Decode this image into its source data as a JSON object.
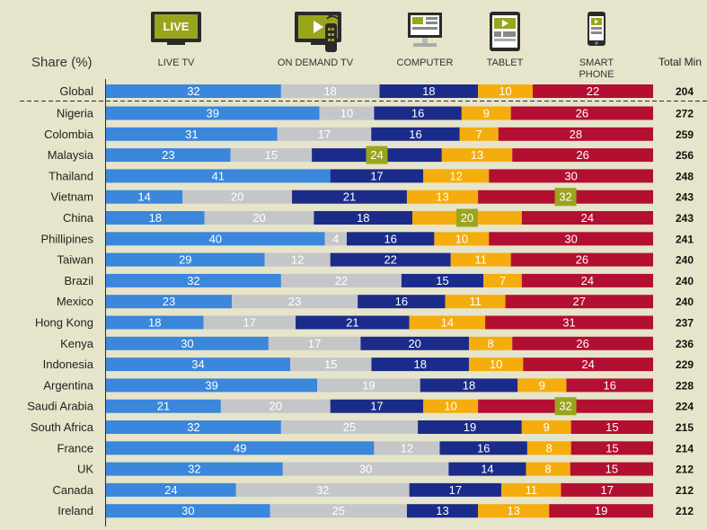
{
  "header": {
    "share_label": "Share (%)",
    "total_label": "Total Min",
    "devices": [
      {
        "label_lines": [
          "LIVE TV"
        ],
        "icon": "live-tv-icon",
        "icon_text": "LIVE"
      },
      {
        "label_lines": [
          "ON DEMAND TV"
        ],
        "icon": "on-demand-tv-icon"
      },
      {
        "label_lines": [
          "COMPUTER"
        ],
        "icon": "computer-icon"
      },
      {
        "label_lines": [
          "TABLET"
        ],
        "icon": "tablet-icon"
      },
      {
        "label_lines": [
          "SMART",
          "PHONE"
        ],
        "icon": "smartphone-icon"
      }
    ]
  },
  "colors": {
    "live_tv": "#3a87dc",
    "on_demand_tv": "#c5c6c8",
    "computer": "#1b2b8a",
    "tablet": "#f5ad0e",
    "smartphone": "#b30f33",
    "highlight_box": "#9aa51e"
  },
  "chart_data": {
    "type": "bar",
    "orientation": "horizontal",
    "stacked": true,
    "unit": "Share (%)",
    "series_names": [
      "LIVE TV",
      "ON DEMAND TV",
      "COMPUTER",
      "TABLET",
      "SMART PHONE"
    ],
    "categories": [
      "Global",
      "Nigeria",
      "Colombia",
      "Malaysia",
      "Thailand",
      "Vietnam",
      "China",
      "Phillipines",
      "Taiwan",
      "Brazil",
      "Mexico",
      "Hong Kong",
      "Kenya",
      "Indonesia",
      "Argentina",
      "Saudi Arabia",
      "South Africa",
      "France",
      "UK",
      "Canada",
      "Ireland"
    ],
    "rows": [
      {
        "country": "Global",
        "values": [
          32,
          18,
          18,
          10,
          22
        ],
        "total": 204,
        "highlight": -1
      },
      {
        "country": "Nigeria",
        "values": [
          39,
          10,
          16,
          9,
          26
        ],
        "total": 272,
        "highlight": -1
      },
      {
        "country": "Colombia",
        "values": [
          31,
          17,
          16,
          7,
          28
        ],
        "total": 259,
        "highlight": -1
      },
      {
        "country": "Malaysia",
        "values": [
          23,
          15,
          24,
          13,
          26
        ],
        "total": 256,
        "highlight": 2
      },
      {
        "country": "Thailand",
        "values": [
          41,
          0,
          17,
          12,
          30
        ],
        "total": 248,
        "highlight": -1
      },
      {
        "country": "Vietnam",
        "values": [
          14,
          20,
          21,
          13,
          32
        ],
        "total": 243,
        "highlight": 4
      },
      {
        "country": "China",
        "values": [
          18,
          20,
          18,
          20,
          24
        ],
        "total": 243,
        "highlight": 3
      },
      {
        "country": "Phillipines",
        "values": [
          40,
          4,
          16,
          10,
          30
        ],
        "total": 241,
        "highlight": -1
      },
      {
        "country": "Taiwan",
        "values": [
          29,
          12,
          22,
          11,
          26
        ],
        "total": 240,
        "highlight": -1
      },
      {
        "country": "Brazil",
        "values": [
          32,
          22,
          15,
          7,
          24
        ],
        "total": 240,
        "highlight": -1
      },
      {
        "country": "Mexico",
        "values": [
          23,
          23,
          16,
          11,
          27
        ],
        "total": 240,
        "highlight": -1
      },
      {
        "country": "Hong Kong",
        "values": [
          18,
          17,
          21,
          14,
          31
        ],
        "total": 237,
        "highlight": -1
      },
      {
        "country": "Kenya",
        "values": [
          30,
          17,
          20,
          8,
          26
        ],
        "total": 236,
        "highlight": -1
      },
      {
        "country": "Indonesia",
        "values": [
          34,
          15,
          18,
          10,
          24
        ],
        "total": 229,
        "highlight": -1
      },
      {
        "country": "Argentina",
        "values": [
          39,
          19,
          18,
          9,
          16
        ],
        "total": 228,
        "highlight": -1
      },
      {
        "country": "Saudi Arabia",
        "values": [
          21,
          20,
          17,
          10,
          32
        ],
        "total": 224,
        "highlight": 4
      },
      {
        "country": "South Africa",
        "values": [
          32,
          25,
          19,
          9,
          15
        ],
        "total": 215,
        "highlight": -1
      },
      {
        "country": "France",
        "values": [
          49,
          12,
          16,
          8,
          15
        ],
        "total": 214,
        "highlight": -1
      },
      {
        "country": "UK",
        "values": [
          32,
          30,
          14,
          8,
          15
        ],
        "total": 212,
        "highlight": -1
      },
      {
        "country": "Canada",
        "values": [
          24,
          32,
          17,
          11,
          17
        ],
        "total": 212,
        "highlight": -1
      },
      {
        "country": "Ireland",
        "values": [
          30,
          25,
          13,
          13,
          19
        ],
        "total": 212,
        "highlight": -1
      }
    ]
  }
}
